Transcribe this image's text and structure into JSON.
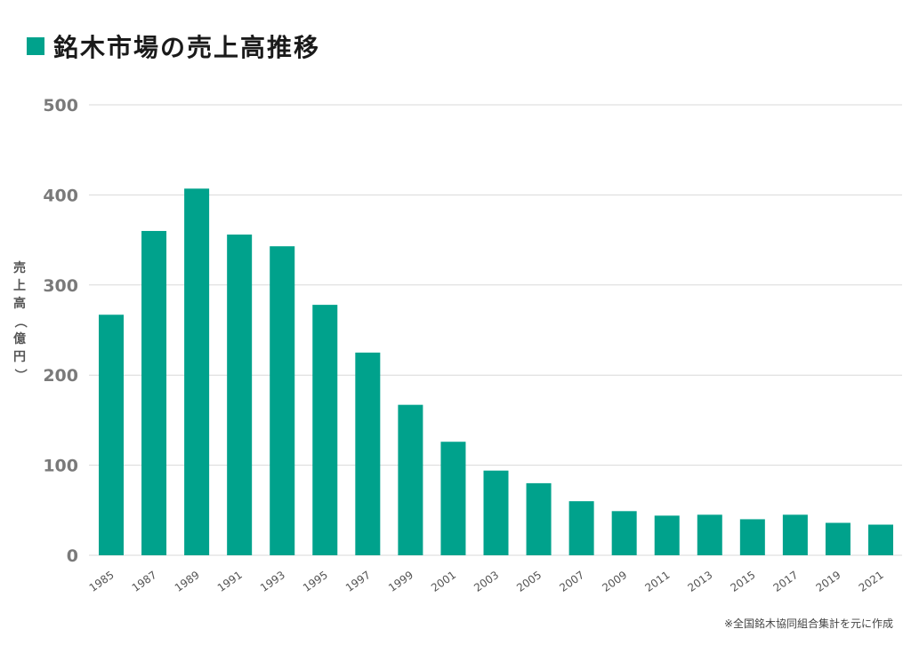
{
  "title": "銘木市場の売上高推移",
  "source": "※全国銘木協同組合集計を元に作成",
  "colors": {
    "bar": "#00a28c",
    "grid": "#d9d9d9",
    "axis_text": "#7a7a7a",
    "ylabel_text": "#555555"
  },
  "chart_data": {
    "type": "bar",
    "title": "銘木市場の売上高推移",
    "xlabel": "",
    "ylabel": "売上高（億円）",
    "ylim": [
      0,
      500
    ],
    "yticks": [
      0,
      100,
      200,
      300,
      400,
      500
    ],
    "grid": true,
    "categories": [
      "1985",
      "1987",
      "1989",
      "1991",
      "1993",
      "1995",
      "1997",
      "1999",
      "2001",
      "2003",
      "2005",
      "2007",
      "2009",
      "2011",
      "2013",
      "2015",
      "2017",
      "2019",
      "2021"
    ],
    "values": [
      267,
      360,
      407,
      356,
      343,
      278,
      225,
      167,
      126,
      94,
      80,
      60,
      49,
      44,
      45,
      40,
      45,
      36,
      34
    ]
  }
}
